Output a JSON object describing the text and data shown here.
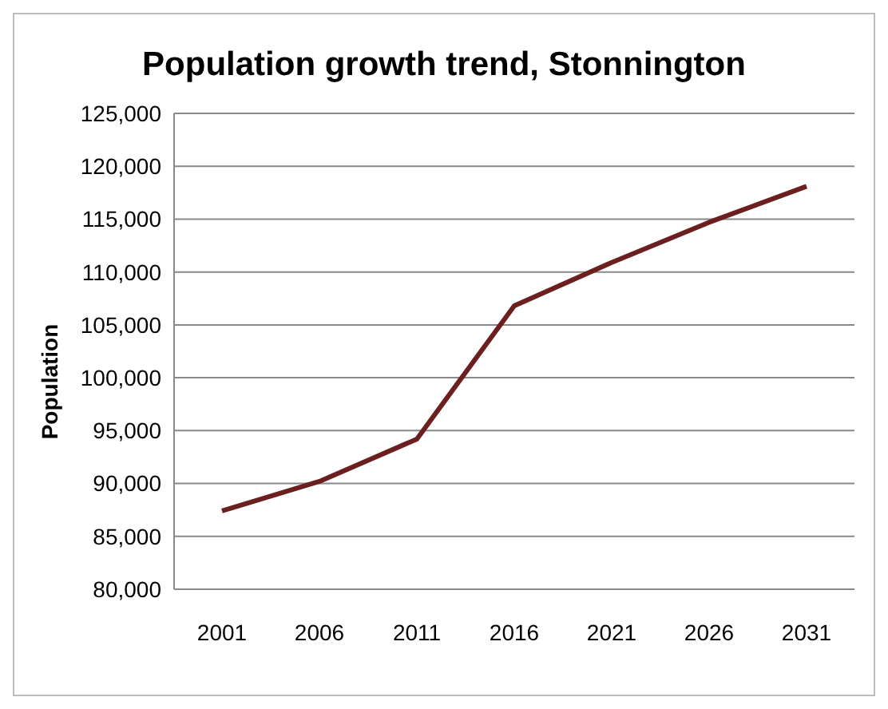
{
  "chart_data": {
    "type": "line",
    "title": "Population growth trend, Stonnington",
    "ylabel": "Population",
    "categories": [
      "2001",
      "2006",
      "2011",
      "2016",
      "2021",
      "2026",
      "2031"
    ],
    "series": [
      {
        "color": "#6b1f1f",
        "values": [
          87400,
          90200,
          94200,
          106800,
          110900,
          114700,
          118100
        ]
      }
    ],
    "ylim": [
      80000,
      125000
    ],
    "yticks": [
      {
        "value": 80000,
        "label": "80,000"
      },
      {
        "value": 85000,
        "label": "85,000"
      },
      {
        "value": 90000,
        "label": "90,000"
      },
      {
        "value": 95000,
        "label": "95,000"
      },
      {
        "value": 100000,
        "label": "100,000"
      },
      {
        "value": 105000,
        "label": "105,000"
      },
      {
        "value": 110000,
        "label": "110,000"
      },
      {
        "value": 115000,
        "label": "115,000"
      },
      {
        "value": 120000,
        "label": "120,000"
      },
      {
        "value": 125000,
        "label": "125,000"
      }
    ],
    "grid": "y",
    "legend": false,
    "marker": "none",
    "line_style": "solid"
  }
}
